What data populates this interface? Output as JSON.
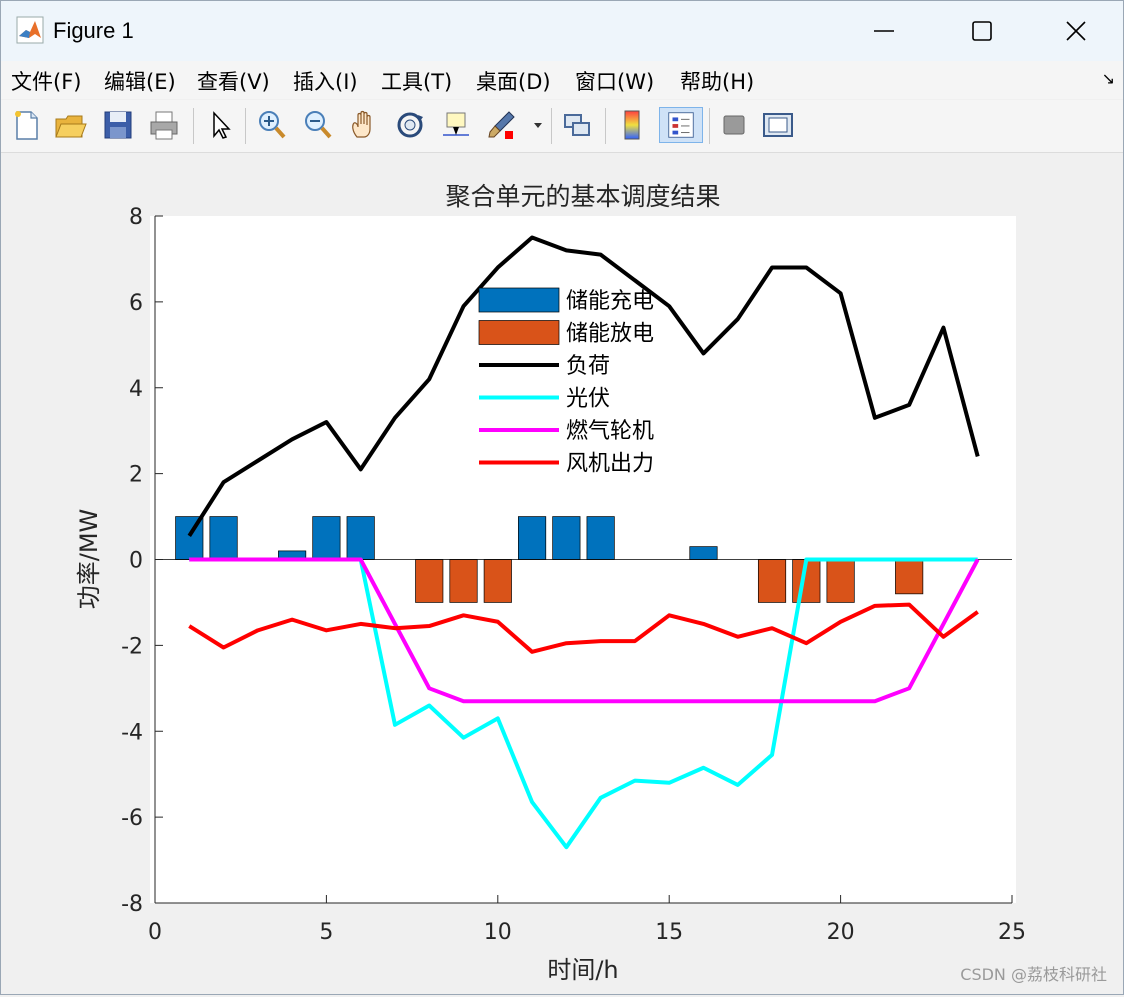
{
  "window": {
    "title": "Figure 1"
  },
  "menu": [
    "文件(F)",
    "编辑(E)",
    "查看(V)",
    "插入(I)",
    "工具(T)",
    "桌面(D)",
    "窗口(W)",
    "帮助(H)"
  ],
  "toolbar": {
    "icons": [
      "new-figure-icon",
      "open-file-icon",
      "save-icon",
      "print-icon",
      "select-arrow-icon",
      "zoom-in-icon",
      "zoom-out-icon",
      "pan-hand-icon",
      "rotate-3d-icon",
      "data-cursor-icon",
      "brush-icon",
      "brush-dropdown-icon",
      "link-plot-icon",
      "colorbar-icon",
      "legend-icon",
      "hide-plot-tools-icon",
      "show-plot-tools-icon"
    ]
  },
  "watermark": "CSDN @荔枝科研社",
  "colors": {
    "charge": "#0072BD",
    "discharge": "#D95319",
    "load": "#000000",
    "pv": "#00FFFF",
    "gas": "#FF00FF",
    "wind": "#FF0000"
  },
  "chart_data": {
    "type": "bar+line",
    "title": "聚合单元的基本调度结果",
    "xlabel": "时间/h",
    "ylabel": "功率/MW",
    "xlim": [
      0,
      25
    ],
    "ylim": [
      -8,
      8
    ],
    "xticks": [
      "0",
      "5",
      "10",
      "15",
      "20",
      "25"
    ],
    "yticks": [
      "8",
      "6",
      "4",
      "2",
      "0",
      "-2",
      "-4",
      "-6",
      "-8"
    ],
    "x": [
      1,
      2,
      3,
      4,
      5,
      6,
      7,
      8,
      9,
      10,
      11,
      12,
      13,
      14,
      15,
      16,
      17,
      18,
      19,
      20,
      21,
      22,
      23,
      24
    ],
    "bars": [
      {
        "name": "储能充电",
        "values": [
          1,
          1,
          0,
          0.2,
          1,
          1,
          0,
          0,
          0,
          0,
          1,
          1,
          1,
          0,
          0,
          0.3,
          0,
          0,
          0,
          0,
          0,
          0,
          0,
          0
        ]
      },
      {
        "name": "储能放电",
        "values": [
          0,
          0,
          0,
          0,
          0,
          0,
          0,
          -1,
          -1,
          -1,
          0,
          0,
          0,
          0,
          0,
          0,
          0,
          -1,
          -1,
          -1,
          0,
          -0.8,
          0,
          0
        ]
      }
    ],
    "series": [
      {
        "name": "负荷",
        "values": [
          0.55,
          1.8,
          2.3,
          2.8,
          3.2,
          2.1,
          3.3,
          4.2,
          5.9,
          6.8,
          7.5,
          7.2,
          7.1,
          6.5,
          5.9,
          4.8,
          5.6,
          6.8,
          6.8,
          6.2,
          3.3,
          3.6,
          5.4,
          2.4
        ]
      },
      {
        "name": "光伏",
        "values": [
          0,
          0,
          0,
          0,
          0,
          0,
          -3.85,
          -3.4,
          -4.15,
          -3.7,
          -5.65,
          -6.7,
          -5.55,
          -5.15,
          -5.2,
          -4.85,
          -5.25,
          -4.55,
          0,
          0,
          0,
          0,
          0,
          0
        ]
      },
      {
        "name": "燃气轮机",
        "values": [
          0,
          0,
          0,
          0,
          0,
          0,
          -1.5,
          -3.0,
          -3.3,
          -3.3,
          -3.3,
          -3.3,
          -3.3,
          -3.3,
          -3.3,
          -3.3,
          -3.3,
          -3.3,
          -3.3,
          -3.3,
          -3.3,
          -3.0,
          -1.5,
          0
        ]
      },
      {
        "name": "风机出力",
        "values": [
          -1.55,
          -2.05,
          -1.65,
          -1.4,
          -1.65,
          -1.5,
          -1.6,
          -1.55,
          -1.3,
          -1.45,
          -2.15,
          -1.95,
          -1.9,
          -1.9,
          -1.3,
          -1.5,
          -1.8,
          -1.6,
          -1.95,
          -1.45,
          -1.08,
          -1.05,
          -1.8,
          -1.22
        ]
      }
    ],
    "legend": [
      "储能充电",
      "储能放电",
      "负荷",
      "光伏",
      "燃气轮机",
      "风机出力"
    ],
    "legend_position": "top-center",
    "grid": false
  }
}
